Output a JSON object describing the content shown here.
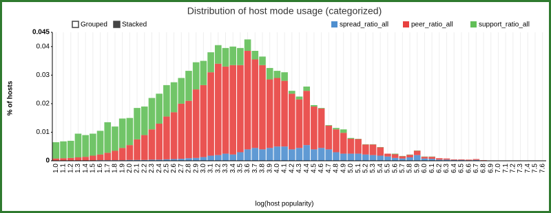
{
  "chart_data": {
    "type": "stacked-bar",
    "title": "Distribution of host mode usage (categorized)",
    "controls": [
      "Grouped",
      "Stacked"
    ],
    "x_label": "log(host popularity)",
    "y_label": "% of hosts",
    "categories": [
      "1.0",
      "1.1",
      "1.2",
      "1.3",
      "1.4",
      "1.5",
      "1.6",
      "1.7",
      "1.8",
      "1.9",
      "2.0",
      "2.1",
      "2.2",
      "2.3",
      "2.4",
      "2.5",
      "2.6",
      "2.7",
      "2.8",
      "2.9",
      "3.0",
      "3.1",
      "3.2",
      "3.3",
      "3.4",
      "3.5",
      "3.6",
      "3.7",
      "3.8",
      "3.9",
      "4.0",
      "4.1",
      "4.2",
      "4.3",
      "4.4",
      "4.5",
      "4.6",
      "4.7",
      "4.8",
      "4.9",
      "5.0",
      "5.1",
      "5.2",
      "5.3",
      "5.4",
      "5.5",
      "5.6",
      "5.7",
      "5.8",
      "5.9",
      "6.0",
      "6.1",
      "6.2",
      "6.3",
      "6.4",
      "6.5",
      "6.6",
      "6.7",
      "6.8",
      "6.9",
      "7.0",
      "7.1",
      "7.2",
      "7.3",
      "7.4",
      "7.5",
      "7.6"
    ],
    "series": [
      {
        "name": "spread_ratio_all",
        "color": "#4f8fcf",
        "values": [
          0.0001,
          0.0001,
          0.0001,
          0.0001,
          0.0001,
          0.0001,
          0.0002,
          0.0002,
          0.0002,
          0.0002,
          0.0003,
          0.0003,
          0.0003,
          0.0004,
          0.0004,
          0.0005,
          0.0006,
          0.0007,
          0.0009,
          0.001,
          0.0013,
          0.0018,
          0.002,
          0.0025,
          0.0022,
          0.003,
          0.004,
          0.0045,
          0.004,
          0.0045,
          0.005,
          0.005,
          0.004,
          0.0045,
          0.0055,
          0.004,
          0.0045,
          0.004,
          0.003,
          0.0025,
          0.0025,
          0.0025,
          0.0022,
          0.002,
          0.0018,
          0.0015,
          0.001,
          0.0008,
          0.0012,
          0.002,
          0.0008,
          0.0007,
          0.0004,
          0.0004,
          0.0003,
          0.0003,
          0.0002,
          0.0003,
          0.0001,
          0.0001,
          0,
          0,
          0,
          0,
          0,
          0,
          0
        ]
      },
      {
        "name": "peer_ratio_all",
        "color": "#e8413f",
        "values": [
          0.0007,
          0.0008,
          0.0009,
          0.0011,
          0.0013,
          0.0017,
          0.002,
          0.0026,
          0.0033,
          0.0043,
          0.0052,
          0.0072,
          0.0087,
          0.0106,
          0.0126,
          0.015,
          0.0164,
          0.0193,
          0.0201,
          0.024,
          0.0252,
          0.0292,
          0.032,
          0.0305,
          0.0313,
          0.0305,
          0.0345,
          0.031,
          0.0295,
          0.024,
          0.024,
          0.023,
          0.0195,
          0.017,
          0.019,
          0.015,
          0.0138,
          0.0083,
          0.008,
          0.0073,
          0.0052,
          0.0051,
          0.0035,
          0.0037,
          0.0029,
          0.001,
          0.0013,
          0.0008,
          0.0009,
          0.0015,
          0.0006,
          0.0007,
          0.0005,
          0.0004,
          0.0002,
          0.0002,
          0.0002,
          0.0003,
          0.0001,
          0,
          0,
          0,
          0,
          0,
          0,
          0,
          0
        ]
      },
      {
        "name": "support_ratio_all",
        "color": "#62bf58",
        "values": [
          0.0057,
          0.0059,
          0.006,
          0.0083,
          0.0076,
          0.0077,
          0.0083,
          0.0107,
          0.0085,
          0.0103,
          0.0095,
          0.011,
          0.01,
          0.011,
          0.0105,
          0.011,
          0.0105,
          0.009,
          0.0105,
          0.0095,
          0.0085,
          0.007,
          0.0065,
          0.0065,
          0.0065,
          0.006,
          0.004,
          0.003,
          0.003,
          0.004,
          0.0025,
          0.003,
          0.001,
          0.001,
          0.0015,
          0.0005,
          0.0002,
          0.0002,
          0.0005,
          0.0012,
          0.0003,
          0.0001,
          0.0001,
          0.0001,
          0.0001,
          0,
          0.0002,
          0.0001,
          0.0001,
          0.0001,
          0.0001,
          0.0001,
          0,
          0,
          0,
          0,
          0,
          0,
          0,
          0,
          0,
          0,
          0,
          0,
          0,
          0,
          0
        ]
      }
    ],
    "ylim": [
      0,
      0.045
    ],
    "yticks": [
      0,
      0.01,
      0.02,
      0.03,
      0.04,
      0.045
    ]
  }
}
